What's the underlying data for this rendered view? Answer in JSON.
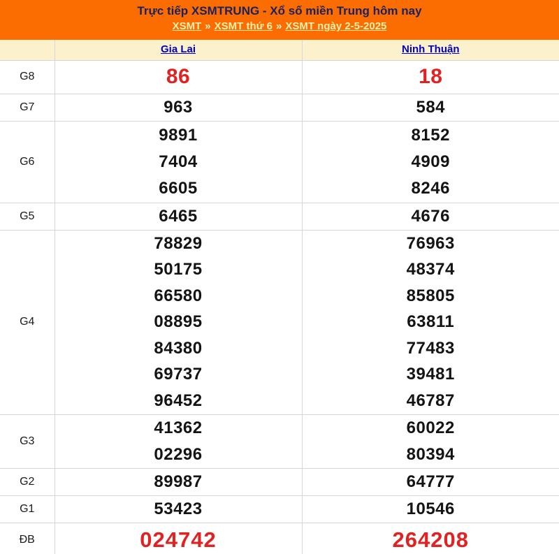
{
  "header": {
    "title": "Trực tiếp XSMTRUNG - Xổ số miền Trung hôm nay",
    "separator": "»",
    "breadcrumb": [
      {
        "label": "XSMT"
      },
      {
        "label": "XSMT thứ 6"
      },
      {
        "label": "XSMT ngày 2-5-2025"
      }
    ]
  },
  "table": {
    "columns": [
      "Gia Lai",
      "Ninh Thuận"
    ],
    "rows": [
      {
        "label": "G8",
        "gia_lai": [
          "86"
        ],
        "ninh_thuan": [
          "18"
        ]
      },
      {
        "label": "G7",
        "gia_lai": [
          "963"
        ],
        "ninh_thuan": [
          "584"
        ]
      },
      {
        "label": "G6",
        "gia_lai": [
          "9891",
          "7404",
          "6605"
        ],
        "ninh_thuan": [
          "8152",
          "4909",
          "8246"
        ]
      },
      {
        "label": "G5",
        "gia_lai": [
          "6465"
        ],
        "ninh_thuan": [
          "4676"
        ]
      },
      {
        "label": "G4",
        "gia_lai": [
          "78829",
          "50175",
          "66580",
          "08895",
          "84380",
          "69737",
          "96452"
        ],
        "ninh_thuan": [
          "76963",
          "48374",
          "85805",
          "63811",
          "77483",
          "39481",
          "46787"
        ]
      },
      {
        "label": "G3",
        "gia_lai": [
          "41362",
          "02296"
        ],
        "ninh_thuan": [
          "60022",
          "80394"
        ]
      },
      {
        "label": "G2",
        "gia_lai": [
          "89987"
        ],
        "ninh_thuan": [
          "64777"
        ]
      },
      {
        "label": "G1",
        "gia_lai": [
          "53423"
        ],
        "ninh_thuan": [
          "10546"
        ]
      },
      {
        "label": "ĐB",
        "gia_lai": [
          "024742"
        ],
        "ninh_thuan": [
          "264208"
        ]
      }
    ]
  },
  "colors": {
    "banner_bg": "#FB6C01",
    "title_text": "#1B2161",
    "breadcrumb_link": "#FFEFA8",
    "table_header_bg": "#FBF2CD",
    "province_link": "#0000CC",
    "number_black": "#141414",
    "number_red": "#E02222",
    "cell_border": "#D6D6D6"
  }
}
